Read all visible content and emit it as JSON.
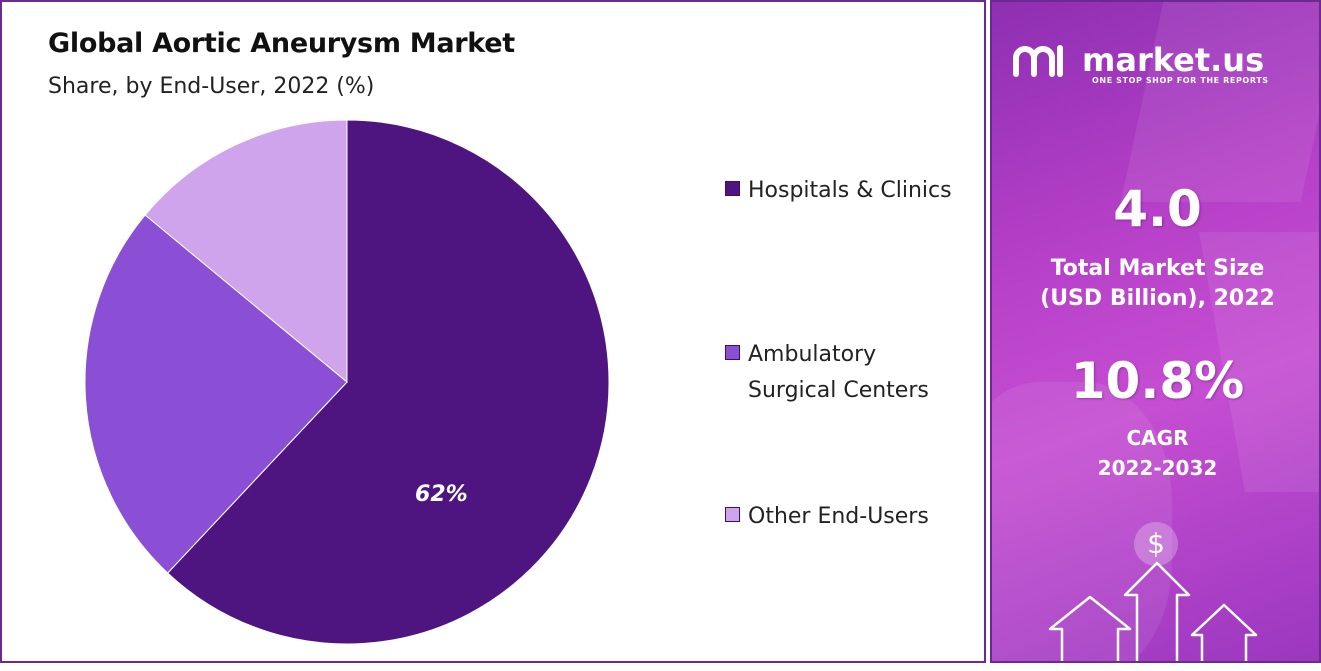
{
  "chart_data": {
    "type": "pie",
    "title": "Global Aortic Aneurysm Market",
    "subtitle": "Share, by End-User, 2022 (%)",
    "slices": [
      {
        "label": "Hospitals & Clinics",
        "value": 62,
        "color": "#4e1580",
        "data_label": "62%"
      },
      {
        "label": "Ambulatory Surgical Centers",
        "value": 24,
        "color": "#8a4fd4",
        "data_label": ""
      },
      {
        "label": "Other End-Users",
        "value": 14,
        "color": "#cfa4ec",
        "data_label": ""
      }
    ],
    "legend": {
      "placement": "right",
      "items": [
        {
          "lines": [
            "Hospitals & Clinics"
          ],
          "color": "#4e1580"
        },
        {
          "lines": [
            "Ambulatory",
            "Surgical Centers"
          ],
          "color": "#8a4fd4"
        },
        {
          "lines": [
            "Other End-Users"
          ],
          "color": "#cfa4ec"
        }
      ]
    }
  },
  "sidebar": {
    "brand": "market.us",
    "tagline": "ONE STOP SHOP FOR THE REPORTS",
    "market_size": {
      "value": "4.0",
      "label_line1": "Total Market Size",
      "label_line2": "(USD Billion), 2022"
    },
    "cagr": {
      "value": "10.8%",
      "label_line1": "CAGR",
      "label_line2": "2022-2032"
    },
    "dollar_symbol": "$",
    "background_color": "#b640c8",
    "icons": [
      "market-us-logo-icon",
      "dollar-coin-icon",
      "up-arrow-icon"
    ]
  }
}
